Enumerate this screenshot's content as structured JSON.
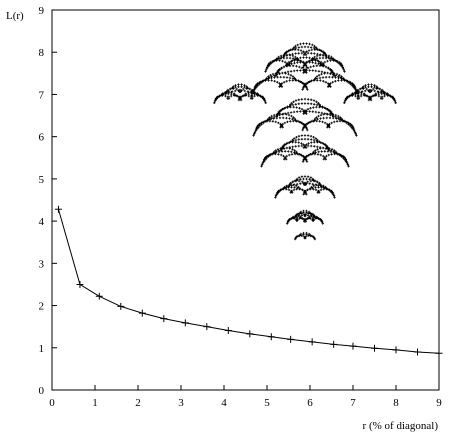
{
  "chart_data": {
    "type": "line",
    "title": "",
    "xlabel": "r (% of diagonal)",
    "ylabel": "L(r)",
    "xlim": [
      0,
      9
    ],
    "ylim": [
      0,
      9
    ],
    "xticks": [
      "0",
      "1",
      "2",
      "3",
      "4",
      "5",
      "6",
      "7",
      "8",
      "9"
    ],
    "yticks": [
      "0",
      "1",
      "2",
      "3",
      "4",
      "5",
      "6",
      "7",
      "8",
      "9"
    ],
    "grid": false,
    "legend": "none",
    "marker": "plus",
    "line_color": "#000000",
    "series": [
      {
        "x": [
          0.15,
          0.65,
          1.1,
          1.6,
          2.1,
          2.6,
          3.1,
          3.6,
          4.1,
          4.6,
          5.1,
          5.55,
          6.05,
          6.55,
          7.0,
          7.5,
          8.0,
          8.5,
          9.0
        ],
        "values": [
          4.28,
          2.5,
          2.22,
          1.98,
          1.82,
          1.69,
          1.59,
          1.5,
          1.41,
          1.33,
          1.26,
          1.2,
          1.14,
          1.08,
          1.04,
          0.99,
          0.95,
          0.9,
          0.87
        ]
      }
    ],
    "inset": {
      "type": "fractal-tree",
      "color": "#000000"
    }
  }
}
